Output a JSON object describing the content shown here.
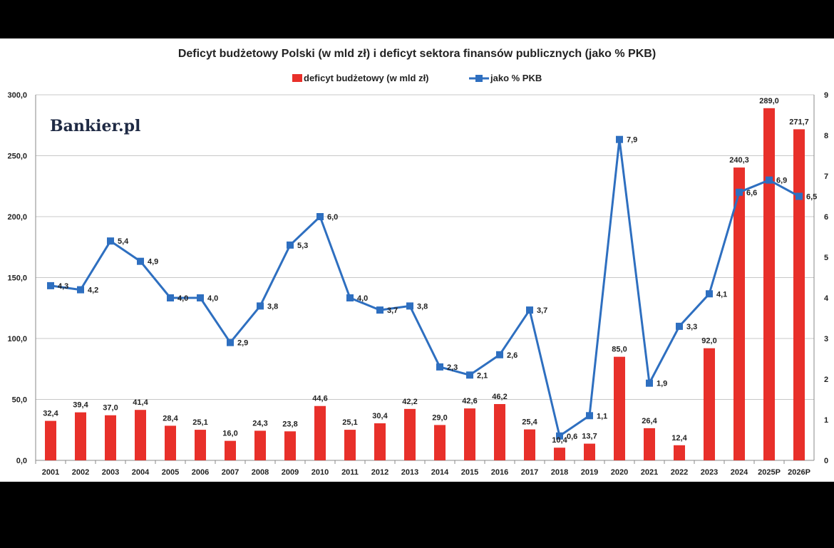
{
  "logo_text": "Bankier.pl",
  "chart_data": {
    "type": "bar",
    "title": "Deficyt budżetowy Polski (w mld zł) i deficyt sektora finansów publicznych (jako % PKB)",
    "categories": [
      "2001",
      "2002",
      "2003",
      "2004",
      "2005",
      "2006",
      "2007",
      "2008",
      "2009",
      "2010",
      "2011",
      "2012",
      "2013",
      "2014",
      "2015",
      "2016",
      "2017",
      "2018",
      "2019",
      "2020",
      "2021",
      "2022",
      "2023",
      "2024",
      "2025P",
      "2026P"
    ],
    "series": [
      {
        "name": "deficyt budżetowy (w mld zł)",
        "type": "bar",
        "axis": "left",
        "color": "#e8302a",
        "values": [
          32.4,
          39.4,
          37.0,
          41.4,
          28.4,
          25.1,
          16.0,
          24.3,
          23.8,
          44.6,
          25.1,
          30.4,
          42.2,
          29.0,
          42.6,
          46.2,
          25.4,
          10.4,
          13.7,
          85.0,
          26.4,
          12.4,
          92.0,
          240.3,
          289.0,
          271.7
        ],
        "labels": [
          "32,4",
          "39,4",
          "37,0",
          "41,4",
          "28,4",
          "25,1",
          "16,0",
          "24,3",
          "23,8",
          "44,6",
          "25,1",
          "30,4",
          "42,2",
          "29,0",
          "42,6",
          "46,2",
          "25,4",
          "10,4",
          "13,7",
          "85,0",
          "26,4",
          "12,4",
          "92,0",
          "240,3",
          "289,0",
          "271,7"
        ]
      },
      {
        "name": "jako % PKB",
        "type": "line",
        "axis": "right",
        "color": "#2e6fc0",
        "values": [
          4.3,
          4.2,
          5.4,
          4.9,
          4.0,
          4.0,
          2.9,
          3.8,
          5.3,
          6.0,
          4.0,
          3.7,
          3.8,
          2.3,
          2.1,
          2.6,
          3.7,
          0.6,
          1.1,
          7.9,
          1.9,
          3.3,
          4.1,
          6.6,
          6.9,
          6.5
        ],
        "labels": [
          "4,3",
          "4,2",
          "5,4",
          "4,9",
          "4,0",
          "4,0",
          "2,9",
          "3,8",
          "5,3",
          "6,0",
          "4,0",
          "3,7",
          "3,8",
          "2,3",
          "2,1",
          "2,6",
          "3,7",
          "0,6",
          "1,1",
          "7,9",
          "1,9",
          "3,3",
          "4,1",
          "6,6",
          "6,9",
          "6,5"
        ]
      }
    ],
    "y_left": {
      "ylim": [
        0,
        300
      ],
      "ticks": [
        "0,0",
        "50,0",
        "100,0",
        "150,0",
        "200,0",
        "250,0",
        "300,0"
      ]
    },
    "y_right": {
      "ylim": [
        0,
        9
      ],
      "ticks": [
        "0",
        "1",
        "2",
        "3",
        "4",
        "5",
        "6",
        "7",
        "8",
        "9"
      ]
    },
    "grid": true,
    "legend_position": "top-center"
  }
}
